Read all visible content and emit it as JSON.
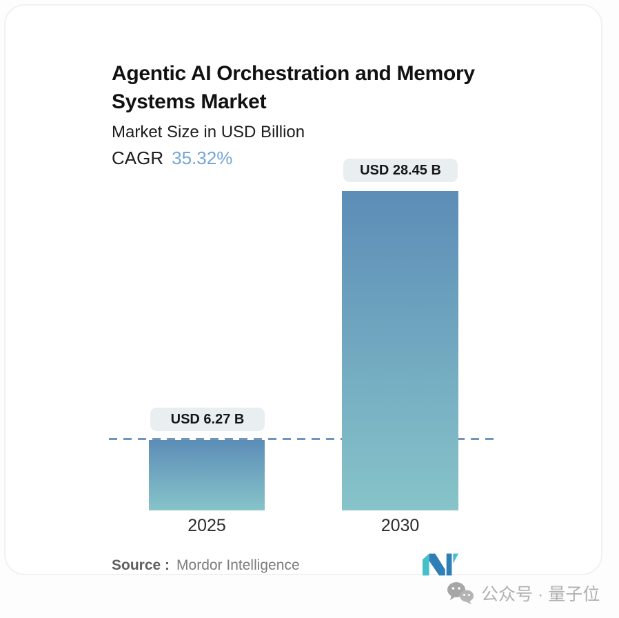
{
  "header": {
    "title_line1": "Agentic AI Orchestration and Memory",
    "title_line2": "Systems Market",
    "subtitle": "Market Size in USD Billion",
    "cagr_label": "CAGR",
    "cagr_value": "35.32%"
  },
  "chart_data": {
    "type": "bar",
    "title": "Agentic AI Orchestration and Memory Systems Market",
    "subtitle": "Market Size in USD Billion",
    "cagr_percent": 35.32,
    "categories": [
      "2025",
      "2030"
    ],
    "values": [
      6.27,
      28.45
    ],
    "bar_labels": [
      "USD 6.27 B",
      "USD 28.45 B"
    ],
    "unit": "USD Billion",
    "ylim": [
      0,
      28.45
    ],
    "grid": false,
    "legend": "none",
    "reference_line": {
      "style": "dashed",
      "at_value": 6.27,
      "color": "#6f95bd"
    },
    "colors": {
      "bar_gradient_top": "#5c8db7",
      "bar_gradient_bottom": "#87c4c9",
      "badge_background": "#e9eef0",
      "cagr_value_text": "#74a5d5"
    }
  },
  "footer": {
    "source_label": "Source :",
    "source_value": "Mordor Intelligence",
    "logo": "mordor-intelligence-logo"
  },
  "watermark": {
    "icon": "wechat-icon",
    "text": "公众号 · 量子位"
  }
}
